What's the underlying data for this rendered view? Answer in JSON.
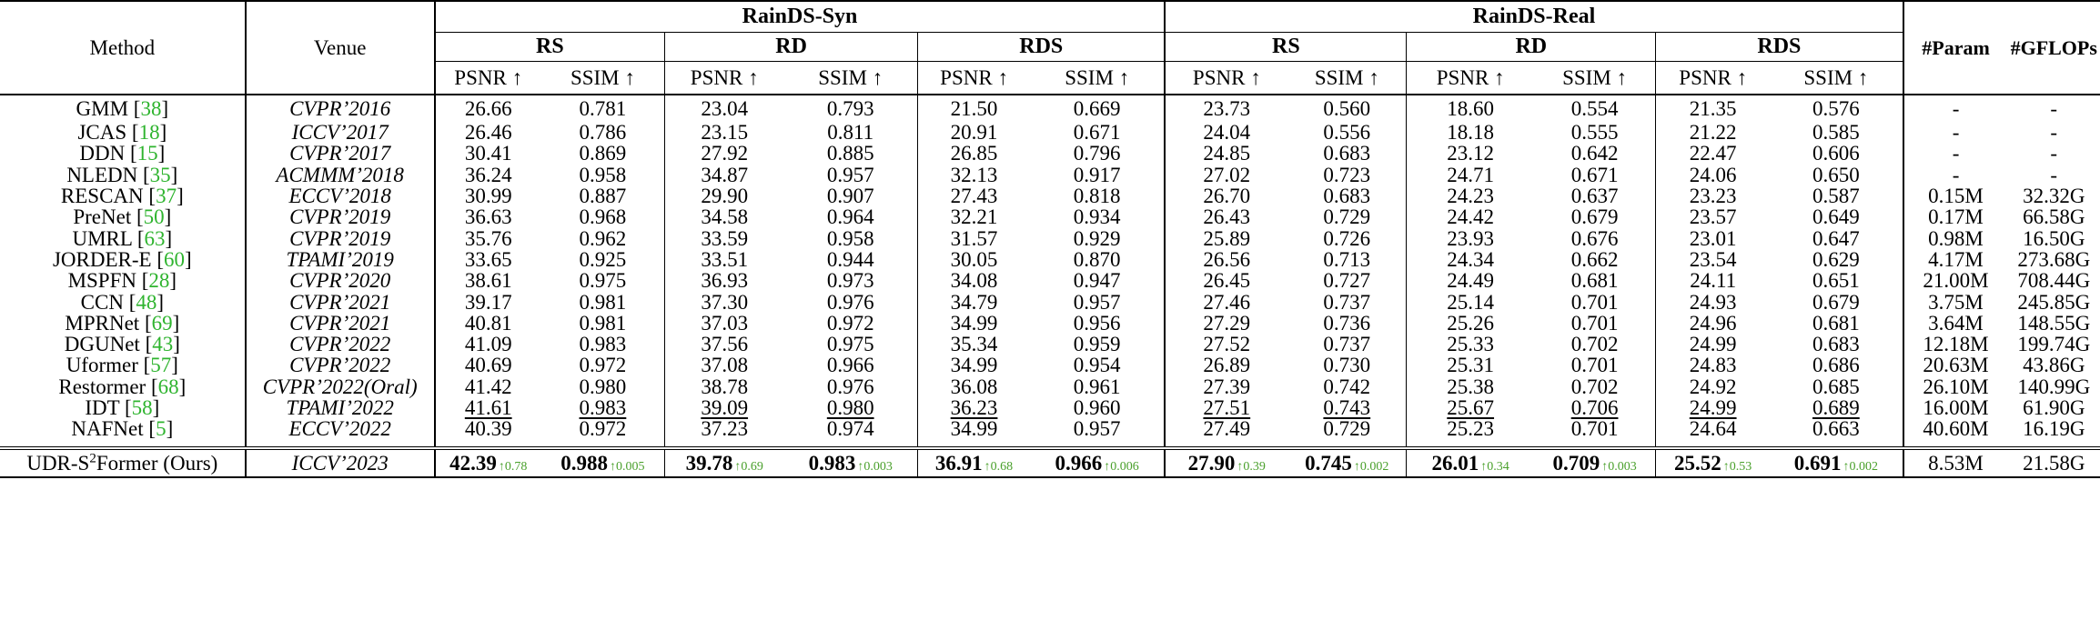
{
  "header": {
    "method": "Method",
    "venue": "Venue",
    "syn_group": "RainDS-Syn",
    "real_group": "RainDS-Real",
    "subsets": [
      "RS",
      "RD",
      "RDS",
      "RS",
      "RD",
      "RDS"
    ],
    "psnr": "PSNR ↑",
    "ssim": "SSIM ↑",
    "params": "#Param",
    "gflops": "#GFLOPs"
  },
  "rows": [
    {
      "name": "GMM",
      "ref": "38",
      "venue": "CVPR’2016",
      "vals": [
        "26.66",
        "0.781",
        "23.04",
        "0.793",
        "21.50",
        "0.669",
        "23.73",
        "0.560",
        "18.60",
        "0.554",
        "21.35",
        "0.576"
      ],
      "params": "-",
      "gflops": "-"
    },
    {
      "name": "JCAS",
      "ref": "18",
      "venue": "ICCV’2017",
      "vals": [
        "26.46",
        "0.786",
        "23.15",
        "0.811",
        "20.91",
        "0.671",
        "24.04",
        "0.556",
        "18.18",
        "0.555",
        "21.22",
        "0.585"
      ],
      "params": "-",
      "gflops": "-"
    },
    {
      "name": "DDN",
      "ref": "15",
      "venue": "CVPR’2017",
      "vals": [
        "30.41",
        "0.869",
        "27.92",
        "0.885",
        "26.85",
        "0.796",
        "24.85",
        "0.683",
        "23.12",
        "0.642",
        "22.47",
        "0.606"
      ],
      "params": "-",
      "gflops": "-"
    },
    {
      "name": "NLEDN",
      "ref": "35",
      "venue": "ACMMM’2018",
      "vals": [
        "36.24",
        "0.958",
        "34.87",
        "0.957",
        "32.13",
        "0.917",
        "27.02",
        "0.723",
        "24.71",
        "0.671",
        "24.06",
        "0.650"
      ],
      "params": "-",
      "gflops": "-"
    },
    {
      "name": "RESCAN",
      "ref": "37",
      "venue": "ECCV’2018",
      "vals": [
        "30.99",
        "0.887",
        "29.90",
        "0.907",
        "27.43",
        "0.818",
        "26.70",
        "0.683",
        "24.23",
        "0.637",
        "23.23",
        "0.587"
      ],
      "params": "0.15M",
      "gflops": "32.32G"
    },
    {
      "name": "PreNet",
      "ref": "50",
      "venue": "CVPR’2019",
      "vals": [
        "36.63",
        "0.968",
        "34.58",
        "0.964",
        "32.21",
        "0.934",
        "26.43",
        "0.729",
        "24.42",
        "0.679",
        "23.57",
        "0.649"
      ],
      "params": "0.17M",
      "gflops": "66.58G"
    },
    {
      "name": "UMRL",
      "ref": "63",
      "venue": "CVPR’2019",
      "vals": [
        "35.76",
        "0.962",
        "33.59",
        "0.958",
        "31.57",
        "0.929",
        "25.89",
        "0.726",
        "23.93",
        "0.676",
        "23.01",
        "0.647"
      ],
      "params": "0.98M",
      "gflops": "16.50G"
    },
    {
      "name": "JORDER-E",
      "ref": "60",
      "venue": "TPAMI’2019",
      "vals": [
        "33.65",
        "0.925",
        "33.51",
        "0.944",
        "30.05",
        "0.870",
        "26.56",
        "0.713",
        "24.34",
        "0.662",
        "23.54",
        "0.629"
      ],
      "params": "4.17M",
      "gflops": "273.68G"
    },
    {
      "name": "MSPFN",
      "ref": "28",
      "venue": "CVPR’2020",
      "vals": [
        "38.61",
        "0.975",
        "36.93",
        "0.973",
        "34.08",
        "0.947",
        "26.45",
        "0.727",
        "24.49",
        "0.681",
        "24.11",
        "0.651"
      ],
      "params": "21.00M",
      "gflops": "708.44G"
    },
    {
      "name": "CCN",
      "ref": "48",
      "venue": "CVPR’2021",
      "vals": [
        "39.17",
        "0.981",
        "37.30",
        "0.976",
        "34.79",
        "0.957",
        "27.46",
        "0.737",
        "25.14",
        "0.701",
        "24.93",
        "0.679"
      ],
      "params": "3.75M",
      "gflops": "245.85G"
    },
    {
      "name": "MPRNet",
      "ref": "69",
      "venue": "CVPR’2021",
      "vals": [
        "40.81",
        "0.981",
        "37.03",
        "0.972",
        "34.99",
        "0.956",
        "27.29",
        "0.736",
        "25.26",
        "0.701",
        "24.96",
        "0.681"
      ],
      "params": "3.64M",
      "gflops": "148.55G"
    },
    {
      "name": "DGUNet",
      "ref": "43",
      "venue": "CVPR’2022",
      "vals": [
        "41.09",
        "0.983",
        "37.56",
        "0.975",
        "35.34",
        "0.959",
        "27.52",
        "0.737",
        "25.33",
        "0.702",
        "24.99",
        "0.683"
      ],
      "params": "12.18M",
      "gflops": "199.74G"
    },
    {
      "name": "Uformer",
      "ref": "57",
      "venue": "CVPR’2022",
      "vals": [
        "40.69",
        "0.972",
        "37.08",
        "0.966",
        "34.99",
        "0.954",
        "26.89",
        "0.730",
        "25.31",
        "0.701",
        "24.83",
        "0.686"
      ],
      "params": "20.63M",
      "gflops": "43.86G"
    },
    {
      "name": "Restormer",
      "ref": "68",
      "venue": "CVPR’2022(Oral)",
      "vals": [
        "41.42",
        "0.980",
        "38.78",
        "0.976",
        "36.08",
        "0.961",
        "27.39",
        "0.742",
        "25.38",
        "0.702",
        "24.92",
        "0.685"
      ],
      "params": "26.10M",
      "gflops": "140.99G"
    },
    {
      "name": "IDT",
      "ref": "58",
      "venue": "TPAMI’2022",
      "vals": [
        "41.61",
        "0.983",
        "39.09",
        "0.980",
        "36.23",
        "0.960",
        "27.51",
        "0.743",
        "25.67",
        "0.706",
        "24.99",
        "0.689"
      ],
      "underline": [
        0,
        1,
        2,
        3,
        4,
        6,
        7,
        8,
        9,
        10,
        11
      ],
      "params": "16.00M",
      "gflops": "61.90G"
    },
    {
      "name": "NAFNet",
      "ref": "5",
      "venue": "ECCV’2022",
      "vals": [
        "40.39",
        "0.972",
        "37.23",
        "0.974",
        "34.99",
        "0.957",
        "27.49",
        "0.729",
        "25.23",
        "0.701",
        "24.64",
        "0.663"
      ],
      "params": "40.60M",
      "gflops": "16.19G"
    }
  ],
  "ours": {
    "name_prefix": "UDR-S",
    "name_sup": "2",
    "name_suffix": "Former (Ours)",
    "venue": "ICCV’2023",
    "vals": [
      "42.39",
      "0.988",
      "39.78",
      "0.983",
      "36.91",
      "0.966",
      "27.90",
      "0.745",
      "26.01",
      "0.709",
      "25.52",
      "0.691"
    ],
    "gains": [
      "↑0.78",
      "↑0.005",
      "↑0.69",
      "↑0.003",
      "↑0.68",
      "↑0.006",
      "↑0.39",
      "↑0.002",
      "↑0.34",
      "↑0.003",
      "↑0.53",
      "↑0.002"
    ],
    "params": "8.53M",
    "gflops": "21.58G"
  }
}
